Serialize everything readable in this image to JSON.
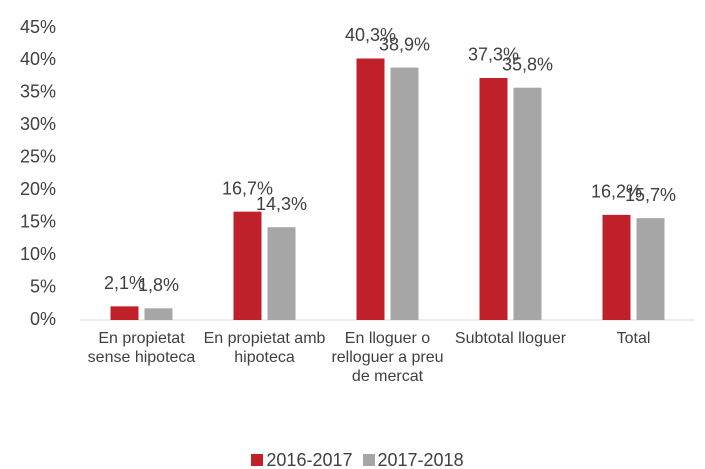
{
  "chart_data": {
    "type": "bar",
    "categories": [
      "En propietat sense hipoteca",
      "En propietat amb hipoteca",
      "En lloguer o relloguer a preu de mercat",
      "Subtotal lloguer",
      "Total"
    ],
    "series": [
      {
        "name": "2016-2017",
        "color": "#c0202a",
        "values": [
          2.1,
          16.7,
          40.3,
          37.3,
          16.2
        ],
        "value_labels": [
          "2,1%",
          "16,7%",
          "40,3%",
          "37,3%",
          "16,2%"
        ]
      },
      {
        "name": "2017-2018",
        "color": "#a6a6a6",
        "values": [
          1.8,
          14.3,
          38.9,
          35.8,
          15.7
        ],
        "value_labels": [
          "1,8%",
          "14,3%",
          "38,9%",
          "35,8%",
          "15,7%"
        ]
      }
    ],
    "ylim": [
      0,
      45
    ],
    "yticks": [
      {
        "value": 0,
        "label": "0%"
      },
      {
        "value": 5,
        "label": "5%"
      },
      {
        "value": 10,
        "label": "10%"
      },
      {
        "value": 15,
        "label": "15%"
      },
      {
        "value": 20,
        "label": "20%"
      },
      {
        "value": 25,
        "label": "25%"
      },
      {
        "value": 30,
        "label": "30%"
      },
      {
        "value": 35,
        "label": "35%"
      },
      {
        "value": 40,
        "label": "40%"
      },
      {
        "value": 45,
        "label": "45%"
      }
    ],
    "grid": false,
    "legend": "bottom"
  }
}
